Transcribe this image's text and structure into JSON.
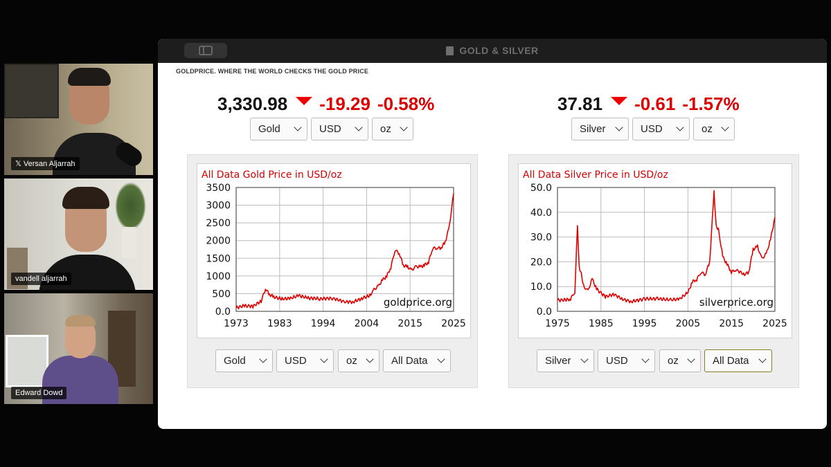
{
  "participants": [
    {
      "name": "𝕏 Versan Aljarrah"
    },
    {
      "name": "vandell aljarrah"
    },
    {
      "name": "Edward Dowd"
    }
  ],
  "window": {
    "title": "GOLD & SILVER"
  },
  "site": {
    "brand": "GOLDPRICE. WHERE THE WORLD CHECKS THE GOLD PRICE"
  },
  "panels": [
    {
      "price": "3,330.98",
      "change": "-19.29",
      "change_pct": "-0.58%",
      "top_selects": {
        "metal": "Gold",
        "currency": "USD",
        "unit": "oz"
      },
      "bottom_selects": {
        "metal": "Gold",
        "currency": "USD",
        "unit": "oz",
        "range": "All Data"
      },
      "chart_data": {
        "type": "line",
        "title": "All Data Gold Price in USD/oz",
        "watermark": "goldprice.org",
        "x_ticks": [
          "1973",
          "1983",
          "1994",
          "2004",
          "2015",
          "2025"
        ],
        "y_ticks": [
          "0.0",
          "500",
          "1000",
          "1500",
          "2000",
          "2500",
          "3000",
          "3500"
        ],
        "xlim": [
          1973,
          2025
        ],
        "ylim": [
          0,
          3500
        ],
        "line_color": "#e00000",
        "grid": true,
        "x": [
          1973,
          1975,
          1977,
          1979,
          1980,
          1981,
          1982,
          1984,
          1986,
          1988,
          1990,
          1993,
          1996,
          1999,
          2001,
          2003,
          2005,
          2006,
          2007,
          2008,
          2009,
          2010,
          2011,
          2012,
          2013,
          2014,
          2015,
          2016,
          2017,
          2018,
          2019,
          2020,
          2021,
          2022,
          2023,
          2024,
          2025
        ],
        "y": [
          100,
          160,
          150,
          300,
          650,
          480,
          400,
          340,
          360,
          440,
          380,
          360,
          380,
          280,
          270,
          360,
          440,
          600,
          700,
          880,
          1000,
          1250,
          1750,
          1650,
          1300,
          1250,
          1150,
          1250,
          1250,
          1300,
          1400,
          1800,
          1800,
          1800,
          1950,
          2400,
          3330
        ]
      }
    },
    {
      "price": "37.81",
      "change": "-0.61",
      "change_pct": "-1.57%",
      "top_selects": {
        "metal": "Silver",
        "currency": "USD",
        "unit": "oz"
      },
      "bottom_selects": {
        "metal": "Silver",
        "currency": "USD",
        "unit": "oz",
        "range": "All Data"
      },
      "chart_data": {
        "type": "line",
        "title": "All Data Silver Price in USD/oz",
        "watermark": "silverprice.org",
        "x_ticks": [
          "1975",
          "1985",
          "1995",
          "2005",
          "2015",
          "2025"
        ],
        "y_ticks": [
          "0.0",
          "10.0",
          "20.0",
          "30.0",
          "40.0",
          "50.0"
        ],
        "xlim": [
          1975,
          2025
        ],
        "ylim": [
          0,
          50
        ],
        "line_color": "#e00000",
        "grid": true,
        "x": [
          1975,
          1977,
          1978,
          1979,
          1979.6,
          1980,
          1980.5,
          1981,
          1982,
          1983,
          1984,
          1986,
          1988,
          1990,
          1992,
          1995,
          1998,
          2001,
          2003,
          2005,
          2006,
          2007,
          2008,
          2009,
          2010,
          2011,
          2011.5,
          2012,
          2013,
          2014,
          2015,
          2016,
          2018,
          2019,
          2020,
          2021,
          2022,
          2023,
          2024,
          2025
        ],
        "y": [
          4.5,
          4.6,
          5.2,
          8,
          35,
          18,
          15,
          10,
          8,
          13,
          9,
          6,
          7,
          5,
          4,
          5,
          5,
          4.5,
          4.8,
          7.5,
          12,
          13,
          16,
          15,
          20,
          48,
          34,
          33,
          22,
          19,
          16,
          17,
          15,
          16,
          25,
          26,
          21,
          23,
          29,
          38
        ]
      }
    }
  ]
}
